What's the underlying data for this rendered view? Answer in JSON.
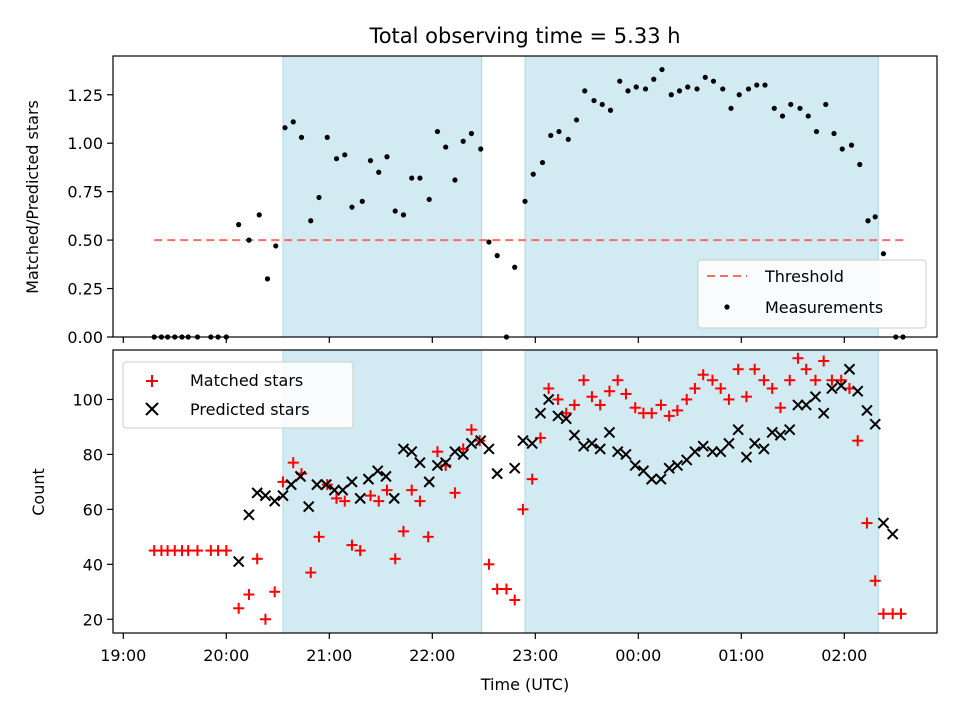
{
  "figure": {
    "title": "Total observing time = 5.33 h"
  },
  "colors": {
    "shade": "#add8e6",
    "threshold": "#ff6b6b",
    "measurement": "#000000",
    "matched": "#ff0000",
    "predicted": "#000000",
    "frame": "#000000"
  },
  "chart_data": [
    {
      "type": "scatter",
      "title": "Total observing time = 5.33 h",
      "xlabel": "",
      "ylabel": "Matched/Predicted stars",
      "x_unit": "UTC time, hours since 19:00",
      "xlim": [
        -0.1,
        7.9
      ],
      "ylim": [
        0.0,
        1.45
      ],
      "yticks": [
        "0.00",
        "0.25",
        "0.50",
        "0.75",
        "1.00",
        "1.25"
      ],
      "ytick_values": [
        0,
        0.25,
        0.5,
        0.75,
        1.0,
        1.25
      ],
      "shaded_intervals": [
        [
          1.55,
          3.48
        ],
        [
          3.9,
          7.33
        ]
      ],
      "threshold": {
        "name": "Threshold",
        "y": 0.5,
        "x_range": [
          0.3,
          7.6
        ]
      },
      "series": [
        {
          "name": "Measurements",
          "points": [
            [
              0.3,
              0
            ],
            [
              0.37,
              0
            ],
            [
              0.43,
              0
            ],
            [
              0.5,
              0
            ],
            [
              0.57,
              0
            ],
            [
              0.63,
              0
            ],
            [
              0.72,
              0
            ],
            [
              0.85,
              0
            ],
            [
              0.92,
              0
            ],
            [
              1.0,
              0
            ],
            [
              1.12,
              0.58
            ],
            [
              1.22,
              0.5
            ],
            [
              1.32,
              0.63
            ],
            [
              1.4,
              0.3
            ],
            [
              1.48,
              0.47
            ],
            [
              1.57,
              1.08
            ],
            [
              1.65,
              1.11
            ],
            [
              1.73,
              1.03
            ],
            [
              1.82,
              0.6
            ],
            [
              1.9,
              0.72
            ],
            [
              1.98,
              1.03
            ],
            [
              2.07,
              0.92
            ],
            [
              2.15,
              0.94
            ],
            [
              2.22,
              0.67
            ],
            [
              2.32,
              0.7
            ],
            [
              2.4,
              0.91
            ],
            [
              2.48,
              0.85
            ],
            [
              2.56,
              0.93
            ],
            [
              2.64,
              0.65
            ],
            [
              2.72,
              0.63
            ],
            [
              2.8,
              0.82
            ],
            [
              2.88,
              0.82
            ],
            [
              2.97,
              0.71
            ],
            [
              3.05,
              1.06
            ],
            [
              3.13,
              0.98
            ],
            [
              3.22,
              0.81
            ],
            [
              3.3,
              1.01
            ],
            [
              3.38,
              1.05
            ],
            [
              3.47,
              0.97
            ],
            [
              3.55,
              0.49
            ],
            [
              3.63,
              0.42
            ],
            [
              3.8,
              0.36
            ],
            [
              3.72,
              0
            ],
            [
              3.9,
              0.7
            ],
            [
              3.98,
              0.84
            ],
            [
              4.07,
              0.9
            ],
            [
              4.15,
              1.04
            ],
            [
              4.23,
              1.06
            ],
            [
              4.32,
              1.02
            ],
            [
              4.4,
              1.12
            ],
            [
              4.48,
              1.27
            ],
            [
              4.57,
              1.22
            ],
            [
              4.65,
              1.2
            ],
            [
              4.73,
              1.17
            ],
            [
              4.82,
              1.32
            ],
            [
              4.9,
              1.27
            ],
            [
              4.98,
              1.29
            ],
            [
              5.07,
              1.28
            ],
            [
              5.15,
              1.33
            ],
            [
              5.23,
              1.38
            ],
            [
              5.32,
              1.25
            ],
            [
              5.4,
              1.27
            ],
            [
              5.48,
              1.29
            ],
            [
              5.57,
              1.28
            ],
            [
              5.65,
              1.34
            ],
            [
              5.73,
              1.32
            ],
            [
              5.82,
              1.28
            ],
            [
              5.9,
              1.18
            ],
            [
              5.98,
              1.25
            ],
            [
              6.07,
              1.28
            ],
            [
              6.15,
              1.3
            ],
            [
              6.23,
              1.3
            ],
            [
              6.32,
              1.18
            ],
            [
              6.4,
              1.14
            ],
            [
              6.48,
              1.2
            ],
            [
              6.57,
              1.18
            ],
            [
              6.65,
              1.14
            ],
            [
              6.73,
              1.06
            ],
            [
              6.82,
              1.2
            ],
            [
              6.9,
              1.05
            ],
            [
              6.98,
              0.97
            ],
            [
              7.07,
              0.99
            ],
            [
              7.15,
              0.89
            ],
            [
              7.23,
              0.6
            ],
            [
              7.3,
              0.62
            ],
            [
              7.38,
              0.43
            ],
            [
              7.5,
              0
            ],
            [
              7.57,
              0
            ]
          ]
        }
      ],
      "legend": {
        "placement": "lower-right",
        "entries": [
          "Threshold",
          "Measurements"
        ]
      }
    },
    {
      "type": "scatter",
      "title": "",
      "xlabel": "Time (UTC)",
      "ylabel": "Count",
      "x_unit": "UTC time, hours since 19:00",
      "xlim": [
        -0.1,
        7.9
      ],
      "ylim": [
        15,
        118
      ],
      "xticks": [
        "19:00",
        "20:00",
        "21:00",
        "22:00",
        "23:00",
        "00:00",
        "01:00",
        "02:00"
      ],
      "xtick_values": [
        0,
        1,
        2,
        3,
        4,
        5,
        6,
        7
      ],
      "yticks": [
        "20",
        "40",
        "60",
        "80",
        "100"
      ],
      "ytick_values": [
        20,
        40,
        60,
        80,
        100
      ],
      "shaded_intervals": [
        [
          1.55,
          3.48
        ],
        [
          3.9,
          7.33
        ]
      ],
      "series": [
        {
          "name": "Matched stars",
          "marker": "plus",
          "points": [
            [
              0.3,
              45
            ],
            [
              0.37,
              45
            ],
            [
              0.43,
              45
            ],
            [
              0.5,
              45
            ],
            [
              0.57,
              45
            ],
            [
              0.63,
              45
            ],
            [
              0.72,
              45
            ],
            [
              0.85,
              45
            ],
            [
              0.92,
              45
            ],
            [
              1.0,
              45
            ],
            [
              1.12,
              24
            ],
            [
              1.22,
              29
            ],
            [
              1.3,
              42
            ],
            [
              1.38,
              20
            ],
            [
              1.47,
              30
            ],
            [
              1.55,
              70
            ],
            [
              1.65,
              77
            ],
            [
              1.73,
              73
            ],
            [
              1.82,
              37
            ],
            [
              1.9,
              50
            ],
            [
              1.98,
              69
            ],
            [
              2.07,
              64
            ],
            [
              2.15,
              63
            ],
            [
              2.22,
              47
            ],
            [
              2.3,
              45
            ],
            [
              2.4,
              65
            ],
            [
              2.48,
              63
            ],
            [
              2.56,
              67
            ],
            [
              2.64,
              42
            ],
            [
              2.72,
              52
            ],
            [
              2.8,
              67
            ],
            [
              2.88,
              63
            ],
            [
              2.96,
              50
            ],
            [
              3.05,
              81
            ],
            [
              3.13,
              76
            ],
            [
              3.22,
              66
            ],
            [
              3.3,
              82
            ],
            [
              3.38,
              89
            ],
            [
              3.46,
              85
            ],
            [
              3.55,
              40
            ],
            [
              3.63,
              31
            ],
            [
              3.72,
              31
            ],
            [
              3.8,
              27
            ],
            [
              3.88,
              60
            ],
            [
              3.97,
              71
            ],
            [
              4.05,
              86
            ],
            [
              4.13,
              104
            ],
            [
              4.22,
              100
            ],
            [
              4.3,
              95
            ],
            [
              4.38,
              98
            ],
            [
              4.47,
              107
            ],
            [
              4.55,
              101
            ],
            [
              4.63,
              98
            ],
            [
              4.72,
              103
            ],
            [
              4.8,
              107
            ],
            [
              4.88,
              102
            ],
            [
              4.97,
              97
            ],
            [
              5.05,
              95
            ],
            [
              5.13,
              95
            ],
            [
              5.22,
              98
            ],
            [
              5.3,
              94
            ],
            [
              5.38,
              96
            ],
            [
              5.47,
              100
            ],
            [
              5.55,
              104
            ],
            [
              5.63,
              109
            ],
            [
              5.72,
              107
            ],
            [
              5.8,
              104
            ],
            [
              5.88,
              100
            ],
            [
              5.97,
              111
            ],
            [
              6.05,
              101
            ],
            [
              6.13,
              111
            ],
            [
              6.22,
              107
            ],
            [
              6.3,
              104
            ],
            [
              6.38,
              97
            ],
            [
              6.47,
              107
            ],
            [
              6.55,
              115
            ],
            [
              6.63,
              111
            ],
            [
              6.72,
              107
            ],
            [
              6.8,
              114
            ],
            [
              6.88,
              107
            ],
            [
              6.97,
              107
            ],
            [
              7.05,
              104
            ],
            [
              7.13,
              85
            ],
            [
              7.22,
              55
            ],
            [
              7.3,
              34
            ],
            [
              7.38,
              22
            ],
            [
              7.47,
              22
            ],
            [
              7.55,
              22
            ]
          ]
        },
        {
          "name": "Predicted stars",
          "marker": "x",
          "points": [
            [
              1.12,
              41
            ],
            [
              1.22,
              58
            ],
            [
              1.3,
              66
            ],
            [
              1.38,
              65
            ],
            [
              1.47,
              63
            ],
            [
              1.55,
              65
            ],
            [
              1.63,
              69
            ],
            [
              1.72,
              72
            ],
            [
              1.8,
              61
            ],
            [
              1.88,
              69
            ],
            [
              1.97,
              69
            ],
            [
              2.05,
              67
            ],
            [
              2.13,
              67
            ],
            [
              2.22,
              70
            ],
            [
              2.3,
              64
            ],
            [
              2.38,
              71
            ],
            [
              2.47,
              74
            ],
            [
              2.55,
              72
            ],
            [
              2.63,
              64
            ],
            [
              2.72,
              82
            ],
            [
              2.8,
              81
            ],
            [
              2.88,
              77
            ],
            [
              2.97,
              70
            ],
            [
              3.05,
              76
            ],
            [
              3.13,
              77
            ],
            [
              3.22,
              81
            ],
            [
              3.3,
              80
            ],
            [
              3.38,
              84
            ],
            [
              3.47,
              85
            ],
            [
              3.55,
              82
            ],
            [
              3.63,
              73
            ],
            [
              3.8,
              75
            ],
            [
              3.88,
              85
            ],
            [
              3.97,
              84
            ],
            [
              4.05,
              95
            ],
            [
              4.13,
              100
            ],
            [
              4.22,
              94
            ],
            [
              4.3,
              93
            ],
            [
              4.38,
              87
            ],
            [
              4.47,
              83
            ],
            [
              4.55,
              84
            ],
            [
              4.63,
              82
            ],
            [
              4.72,
              88
            ],
            [
              4.8,
              81
            ],
            [
              4.88,
              80
            ],
            [
              4.97,
              76
            ],
            [
              5.05,
              74
            ],
            [
              5.13,
              71
            ],
            [
              5.22,
              71
            ],
            [
              5.3,
              75
            ],
            [
              5.38,
              76
            ],
            [
              5.47,
              78
            ],
            [
              5.55,
              81
            ],
            [
              5.63,
              83
            ],
            [
              5.72,
              81
            ],
            [
              5.8,
              81
            ],
            [
              5.88,
              84
            ],
            [
              5.97,
              89
            ],
            [
              6.05,
              79
            ],
            [
              6.13,
              84
            ],
            [
              6.22,
              82
            ],
            [
              6.3,
              88
            ],
            [
              6.38,
              87
            ],
            [
              6.47,
              89
            ],
            [
              6.55,
              98
            ],
            [
              6.63,
              98
            ],
            [
              6.72,
              101
            ],
            [
              6.8,
              95
            ],
            [
              6.88,
              104
            ],
            [
              6.97,
              105
            ],
            [
              7.05,
              111
            ],
            [
              7.13,
              103
            ],
            [
              7.22,
              96
            ],
            [
              7.3,
              91
            ],
            [
              7.38,
              55
            ],
            [
              7.47,
              51
            ]
          ]
        }
      ],
      "legend": {
        "placement": "upper-left",
        "entries": [
          "Matched stars",
          "Predicted stars"
        ]
      }
    }
  ]
}
